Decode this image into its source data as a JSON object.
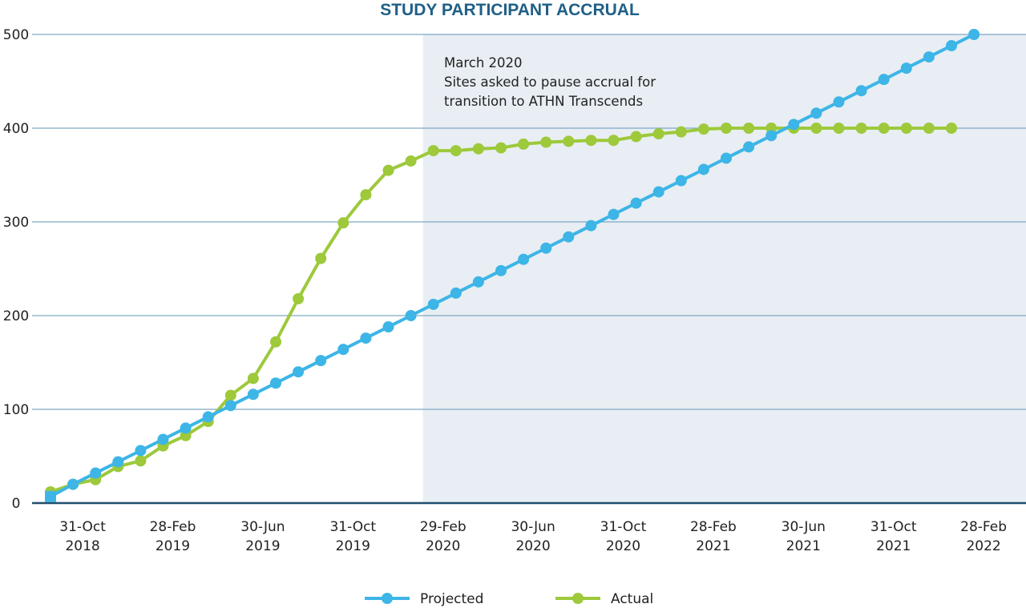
{
  "chart_data": {
    "type": "line",
    "title": "STUDY PARTICIPANT ACCRUAL",
    "xlabel": "",
    "ylabel": "",
    "ylim": [
      0,
      500
    ],
    "yticks": [
      0,
      100,
      200,
      300,
      400,
      500
    ],
    "grid": true,
    "legend_placement": "bottom",
    "x": [
      "2018-09",
      "2018-10",
      "2018-11",
      "2018-12",
      "2019-01",
      "2019-02",
      "2019-03",
      "2019-04",
      "2019-05",
      "2019-06",
      "2019-07",
      "2019-08",
      "2019-09",
      "2019-10",
      "2019-11",
      "2019-12",
      "2020-01",
      "2020-02",
      "2020-03",
      "2020-04",
      "2020-05",
      "2020-06",
      "2020-07",
      "2020-08",
      "2020-09",
      "2020-10",
      "2020-11",
      "2020-12",
      "2021-01",
      "2021-02",
      "2021-03",
      "2021-04",
      "2021-05",
      "2021-06",
      "2021-07",
      "2021-08",
      "2021-09",
      "2021-10",
      "2021-11",
      "2021-12",
      "2022-01",
      "2022-02"
    ],
    "xtick_labels": [
      {
        "month": "2018-10",
        "line1": "31-Oct",
        "line2": "2018"
      },
      {
        "month": "2019-02",
        "line1": "28-Feb",
        "line2": "2019"
      },
      {
        "month": "2019-06",
        "line1": "30-Jun",
        "line2": "2019"
      },
      {
        "month": "2019-10",
        "line1": "31-Oct",
        "line2": "2019"
      },
      {
        "month": "2020-02",
        "line1": "29-Feb",
        "line2": "2020"
      },
      {
        "month": "2020-06",
        "line1": "30-Jun",
        "line2": "2020"
      },
      {
        "month": "2020-10",
        "line1": "31-Oct",
        "line2": "2020"
      },
      {
        "month": "2021-02",
        "line1": "28-Feb",
        "line2": "2021"
      },
      {
        "month": "2021-06",
        "line1": "30-Jun",
        "line2": "2021"
      },
      {
        "month": "2021-10",
        "line1": "31-Oct",
        "line2": "2021"
      },
      {
        "month": "2022-02",
        "line1": "28-Feb",
        "line2": "2022"
      }
    ],
    "series": [
      {
        "name": "Projected",
        "color": "#3db5e6",
        "values": [
          7,
          20,
          32,
          44,
          56,
          68,
          80,
          92,
          104,
          116,
          128,
          140,
          152,
          164,
          176,
          188,
          200,
          212,
          224,
          236,
          248,
          260,
          272,
          284,
          296,
          308,
          320,
          332,
          344,
          356,
          368,
          380,
          392,
          404,
          416,
          428,
          440,
          452,
          464,
          476,
          488,
          500
        ]
      },
      {
        "name": "Actual",
        "color": "#9dc93b",
        "values": [
          12,
          20,
          25,
          39,
          45,
          61,
          72,
          87,
          115,
          133,
          172,
          218,
          261,
          299,
          329,
          355,
          365,
          376,
          376,
          378,
          379,
          383,
          385,
          386,
          387,
          387,
          391,
          394,
          396,
          399,
          400,
          400,
          400,
          400,
          400,
          400,
          400,
          400,
          400,
          400,
          400,
          null
        ]
      }
    ],
    "shaded_region": {
      "from_month": "2020-02",
      "color": "#e8eef3"
    },
    "annotation": {
      "lines": [
        "March 2020",
        "Sites asked to pause accrual for",
        "transition to ATHN Transcends"
      ]
    },
    "colors": {
      "grid": "#7fa9c4",
      "axis": "#1f4e6e",
      "title": "#1f5f86"
    }
  }
}
